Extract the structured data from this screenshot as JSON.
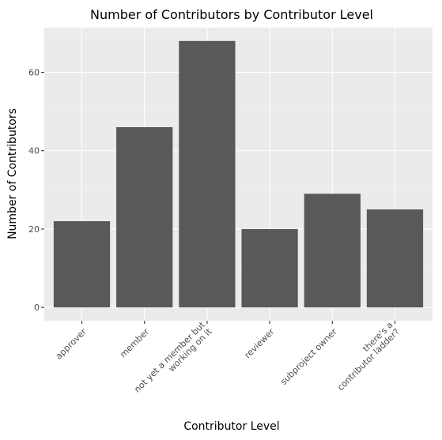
{
  "chart_data": {
    "type": "bar",
    "title": "Number of Contributors by Contributor Level",
    "xlabel": "Contributor Level",
    "ylabel": "Number of Contributors",
    "categories": [
      [
        "approver"
      ],
      [
        "member"
      ],
      [
        "not yet a member but",
        "working on it"
      ],
      [
        "reviewer"
      ],
      [
        "subproject owner"
      ],
      [
        "there's a",
        "contributor ladder?"
      ]
    ],
    "values": [
      22,
      46,
      68,
      20,
      29,
      25
    ],
    "yticks": [
      0,
      20,
      40,
      60
    ],
    "ylim": [
      -3.4,
      71.4
    ],
    "bar_color": "#595959",
    "panel_color": "#ebebeb",
    "grid": true,
    "legend": "none"
  }
}
